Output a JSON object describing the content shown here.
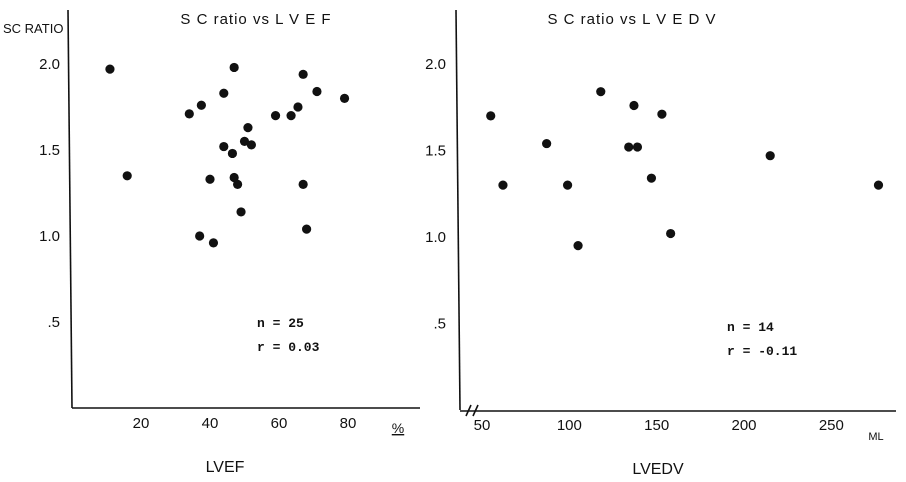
{
  "chart_data": [
    {
      "type": "scatter",
      "title": "S C ratio vs L V E F",
      "ylabel": "SC RATIO",
      "xlabel": "LVEF",
      "x_unit": "%",
      "xlim": [
        0,
        100
      ],
      "ylim": [
        0,
        2.2
      ],
      "xticks": [
        "20",
        "40",
        "60",
        "80"
      ],
      "yticks": [
        "2.0",
        "1.5",
        "1.0",
        ".5"
      ],
      "annotations": [
        "n = 25",
        "r = 0.03"
      ],
      "grid": false,
      "points": [
        {
          "x": 11,
          "y": 1.97
        },
        {
          "x": 16,
          "y": 1.35
        },
        {
          "x": 34,
          "y": 1.71
        },
        {
          "x": 37.5,
          "y": 1.76
        },
        {
          "x": 37,
          "y": 1.0
        },
        {
          "x": 40,
          "y": 1.33
        },
        {
          "x": 41,
          "y": 0.96
        },
        {
          "x": 44,
          "y": 1.83
        },
        {
          "x": 44,
          "y": 1.52
        },
        {
          "x": 47,
          "y": 1.98
        },
        {
          "x": 46.5,
          "y": 1.48
        },
        {
          "x": 47,
          "y": 1.34
        },
        {
          "x": 48,
          "y": 1.3
        },
        {
          "x": 49,
          "y": 1.14
        },
        {
          "x": 50,
          "y": 1.55
        },
        {
          "x": 51,
          "y": 1.63
        },
        {
          "x": 52,
          "y": 1.53
        },
        {
          "x": 59,
          "y": 1.7
        },
        {
          "x": 63.5,
          "y": 1.7
        },
        {
          "x": 65.5,
          "y": 1.75
        },
        {
          "x": 67,
          "y": 1.94
        },
        {
          "x": 67,
          "y": 1.3
        },
        {
          "x": 68,
          "y": 1.04
        },
        {
          "x": 71,
          "y": 1.84
        },
        {
          "x": 79,
          "y": 1.8
        }
      ]
    },
    {
      "type": "scatter",
      "title": "S C ratio vs L V E D V",
      "ylabel": "",
      "xlabel": "LVEDV",
      "x_unit": "ML",
      "xlim": [
        40,
        285
      ],
      "ylim": [
        0,
        2.2
      ],
      "xticks": [
        "50",
        "100",
        "150",
        "200",
        "250"
      ],
      "yticks": [
        "2.0",
        "1.5",
        "1.0",
        ".5"
      ],
      "annotations": [
        "n = 14",
        "r = -0.11"
      ],
      "grid": false,
      "points": [
        {
          "x": 55,
          "y": 1.7
        },
        {
          "x": 62,
          "y": 1.3
        },
        {
          "x": 87,
          "y": 1.54
        },
        {
          "x": 99,
          "y": 1.3
        },
        {
          "x": 105,
          "y": 0.95
        },
        {
          "x": 118,
          "y": 1.84
        },
        {
          "x": 134,
          "y": 1.52
        },
        {
          "x": 137,
          "y": 1.76
        },
        {
          "x": 139,
          "y": 1.52
        },
        {
          "x": 147,
          "y": 1.34
        },
        {
          "x": 153,
          "y": 1.71
        },
        {
          "x": 158,
          "y": 1.02
        },
        {
          "x": 215,
          "y": 1.47
        },
        {
          "x": 277,
          "y": 1.3
        }
      ]
    }
  ]
}
